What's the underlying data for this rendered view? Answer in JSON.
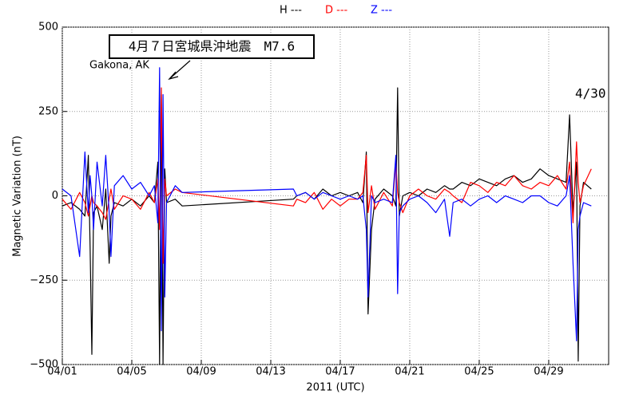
{
  "chart_data": {
    "type": "line",
    "annotations": {
      "event": "4月７日宮城県沖地震　M7.6",
      "station": "Gakona, AK",
      "date": "4/30"
    },
    "xlabel": "2011 (UTC)",
    "ylabel": "Magnetic Variation (nT)",
    "x": [
      1,
      1.5,
      2,
      2.3,
      2.5,
      2.6,
      2.7,
      2.8,
      3,
      3.3,
      3.5,
      3.7,
      3.8,
      4,
      4.5,
      5,
      5.5,
      6,
      6.3,
      6.5,
      6.6,
      6.7,
      6.8,
      6.9,
      7,
      7.5,
      7.9,
      14.3,
      14.5,
      15,
      15.5,
      16,
      16.5,
      17,
      17.5,
      18,
      18.3,
      18.5,
      18.6,
      18.8,
      19,
      19.5,
      20,
      20.2,
      20.3,
      20.4,
      20.6,
      21,
      21.5,
      22,
      22.5,
      23,
      23.3,
      23.5,
      24,
      24.5,
      25,
      25.5,
      26,
      26.5,
      27,
      27.5,
      28,
      28.5,
      29,
      29.5,
      30,
      30.2,
      30.4,
      30.6,
      30.7,
      30.8,
      31,
      31.45
    ],
    "series": [
      {
        "name": "H ---",
        "color": "#000000",
        "values": [
          -30,
          -20,
          -40,
          -60,
          120,
          -150,
          -470,
          -50,
          -30,
          -100,
          20,
          -200,
          -60,
          -20,
          -30,
          -10,
          -30,
          0,
          -20,
          100,
          -500,
          300,
          -500,
          80,
          -20,
          -10,
          -30,
          -10,
          0,
          10,
          -10,
          20,
          0,
          10,
          0,
          10,
          -20,
          130,
          -350,
          -100,
          -10,
          20,
          0,
          -30,
          320,
          -60,
          0,
          10,
          0,
          20,
          10,
          30,
          20,
          20,
          40,
          30,
          50,
          40,
          30,
          50,
          60,
          40,
          50,
          80,
          60,
          50,
          40,
          240,
          -50,
          100,
          -490,
          -30,
          40,
          20
        ]
      },
      {
        "name": "D ---",
        "color": "#ff0000",
        "values": [
          -10,
          -40,
          10,
          -20,
          -60,
          -30,
          0,
          -20,
          -30,
          -50,
          -70,
          -10,
          20,
          -40,
          0,
          -10,
          -40,
          10,
          -20,
          50,
          -100,
          320,
          -200,
          50,
          0,
          20,
          10,
          -30,
          -10,
          -20,
          10,
          -40,
          -10,
          -30,
          -10,
          -10,
          10,
          120,
          -50,
          30,
          -40,
          10,
          -30,
          100,
          10,
          -20,
          -50,
          0,
          20,
          0,
          -10,
          20,
          10,
          0,
          -20,
          40,
          30,
          10,
          40,
          30,
          60,
          30,
          20,
          40,
          30,
          60,
          20,
          100,
          -80,
          160,
          40,
          -20,
          30,
          80
        ]
      },
      {
        "name": "Z ---",
        "color": "#0000ff",
        "values": [
          20,
          0,
          -180,
          130,
          -50,
          60,
          0,
          -100,
          100,
          -30,
          120,
          -50,
          -180,
          30,
          60,
          20,
          40,
          0,
          30,
          -80,
          380,
          -400,
          300,
          -300,
          -20,
          30,
          10,
          20,
          0,
          10,
          -10,
          10,
          0,
          -10,
          0,
          -10,
          0,
          -100,
          -300,
          0,
          -20,
          -10,
          -20,
          120,
          -290,
          -50,
          -30,
          -10,
          0,
          -20,
          -50,
          -10,
          -120,
          -20,
          -10,
          -30,
          -10,
          0,
          -20,
          0,
          -10,
          -20,
          0,
          0,
          -20,
          -30,
          0,
          60,
          -200,
          -430,
          -100,
          -60,
          -20,
          -30
        ]
      }
    ],
    "xlim": [
      1,
      32.45
    ],
    "xticks": [
      {
        "value": 1,
        "label": "04/01"
      },
      {
        "value": 5,
        "label": "04/05"
      },
      {
        "value": 9,
        "label": "04/09"
      },
      {
        "value": 13,
        "label": "04/13"
      },
      {
        "value": 17,
        "label": "04/17"
      },
      {
        "value": 21,
        "label": "04/21"
      },
      {
        "value": 25,
        "label": "04/25"
      },
      {
        "value": 29,
        "label": "04/29"
      }
    ],
    "ylim": [
      -500,
      500
    ],
    "yticks": [
      {
        "value": -500,
        "label": "−500"
      },
      {
        "value": -250,
        "label": "−250"
      },
      0,
      250,
      500
    ],
    "grid": true
  }
}
